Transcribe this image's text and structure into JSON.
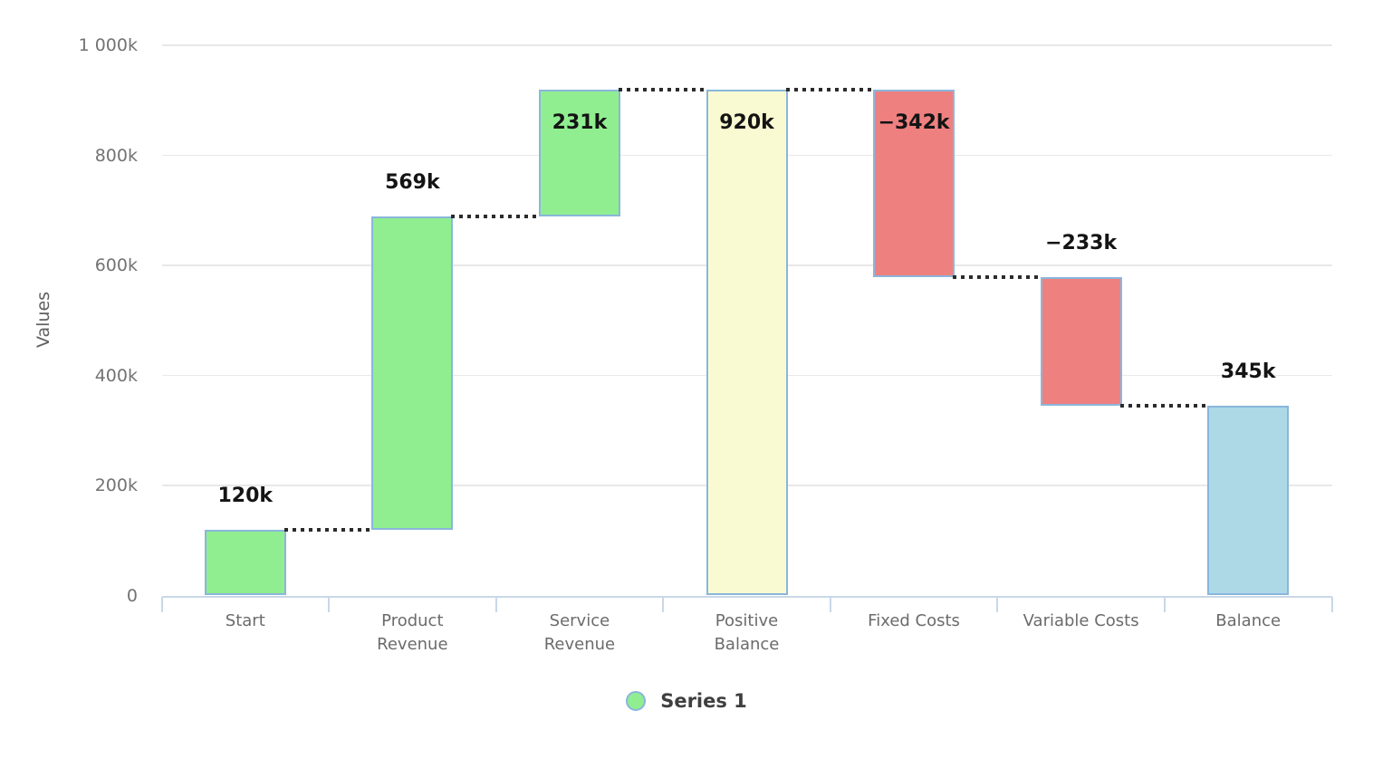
{
  "chart_data": {
    "type": "waterfall",
    "title": "",
    "ylabel": "Values",
    "ylim": [
      0,
      1000
    ],
    "unit": "k",
    "grid": "horizontal",
    "connector_style": "dotted",
    "legend_position": "bottom-center",
    "series": [
      {
        "name": "Series 1",
        "marker_color": "#90EE90"
      }
    ],
    "y_ticks": [
      {
        "value": 0,
        "label": "0"
      },
      {
        "value": 200,
        "label": "200k"
      },
      {
        "value": 400,
        "label": "400k"
      },
      {
        "value": 600,
        "label": "600k"
      },
      {
        "value": 800,
        "label": "800k"
      },
      {
        "value": 1000,
        "label": "1 000k"
      }
    ],
    "categories": [
      "Start",
      "Product Revenue",
      "Service Revenue",
      "Positive Balance",
      "Fixed Costs",
      "Variable Costs",
      "Balance"
    ],
    "points": [
      {
        "category": "Start",
        "axis_label": "Start",
        "delta": 120,
        "start": 0,
        "end": 120,
        "label": "120k",
        "kind": "rising",
        "label_placement": "above"
      },
      {
        "category": "Product Revenue",
        "axis_label": "Product\nRevenue",
        "delta": 569,
        "start": 120,
        "end": 689,
        "label": "569k",
        "kind": "rising",
        "label_placement": "above"
      },
      {
        "category": "Service Revenue",
        "axis_label": "Service\nRevenue",
        "delta": 231,
        "start": 689,
        "end": 920,
        "label": "231k",
        "kind": "rising",
        "label_placement": "inside"
      },
      {
        "category": "Positive Balance",
        "axis_label": "Positive\nBalance",
        "delta": 920,
        "start": 0,
        "end": 920,
        "label": "920k",
        "kind": "subtotal",
        "label_placement": "inside"
      },
      {
        "category": "Fixed Costs",
        "axis_label": "Fixed Costs",
        "delta": -342,
        "start": 920,
        "end": 578,
        "label": "−342k",
        "kind": "falling",
        "label_placement": "inside"
      },
      {
        "category": "Variable Costs",
        "axis_label": "Variable Costs",
        "delta": -233,
        "start": 578,
        "end": 345,
        "label": "−233k",
        "kind": "falling",
        "label_placement": "above"
      },
      {
        "category": "Balance",
        "axis_label": "Balance",
        "delta": 345,
        "start": 0,
        "end": 345,
        "label": "345k",
        "kind": "total",
        "label_placement": "above"
      }
    ],
    "colors": {
      "rising": "#90EE90",
      "falling": "#EF8080",
      "subtotal": "#FAFAD2",
      "total": "#ADD8E6",
      "bar_stroke": "#8AB6DC",
      "connector": "#2B2B2B",
      "gridline": "#E8E8E8",
      "axis_line": "#C9D8E8",
      "tick_label": "#737373",
      "category_label": "#6B6B6B",
      "value_label": "#141414",
      "axis_title": "#606060",
      "legend_text": "#3F3F3F"
    }
  }
}
